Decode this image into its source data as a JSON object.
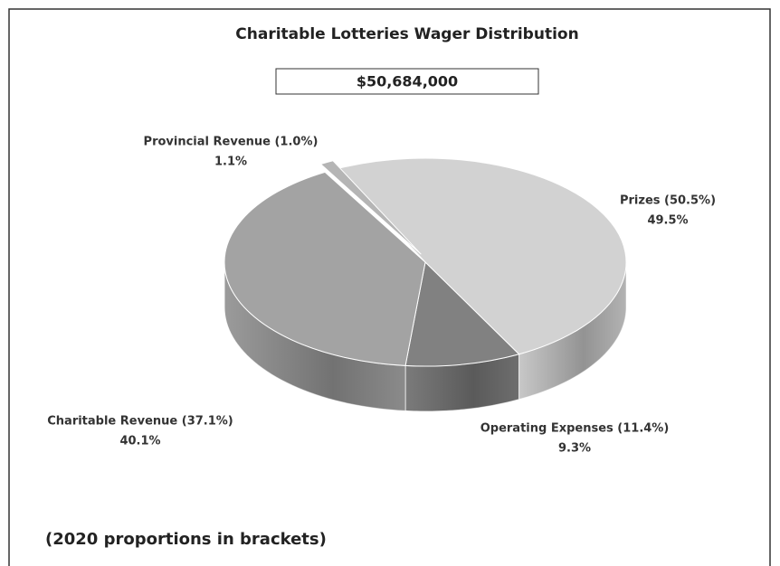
{
  "chart_data": {
    "type": "pie3d",
    "title": "Charitable Lotteries Wager Distribution",
    "subtitle": "$50,684,000",
    "categories": [
      "Prizes  (50.5%)",
      "Operating Expenses  (11.4%)",
      "Charitable Revenue  (37.1%)",
      "Provincial Revenue  (1.0%)"
    ],
    "values": [
      49.5,
      9.3,
      40.1,
      1.1
    ],
    "value_labels": [
      "49.5%",
      "9.3%",
      "40.1%",
      "1.1%"
    ],
    "colors": [
      "#d2d2d2",
      "#818181",
      "#a3a3a3",
      "#b5b5b5"
    ],
    "footnote": "(2020 proportions in brackets)"
  }
}
